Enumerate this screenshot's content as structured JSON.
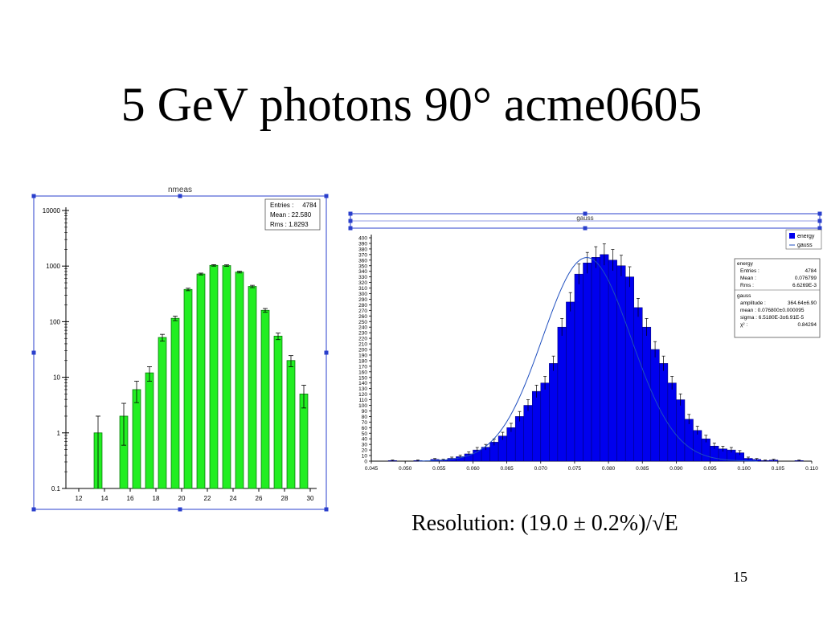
{
  "slide": {
    "title": "5 GeV photons 90° acme0605",
    "resolution_text": "Resolution: (19.0 ± 0.2%)/√E",
    "page_number": "15"
  },
  "colors": {
    "left_bars": "#22ee22",
    "right_bars": "#0000ee",
    "fit_curve": "#1f4fbf",
    "frame": "#2a3fcc"
  },
  "chart_data": [
    {
      "type": "bar",
      "title": "nmeas",
      "log_y": true,
      "xlim": [
        11,
        30.5
      ],
      "ylim": [
        0.1,
        10000
      ],
      "x_ticks": [
        "12",
        "14",
        "16",
        "18",
        "20",
        "22",
        "24",
        "26",
        "28",
        "30"
      ],
      "y_ticks": [
        "0.1",
        "1",
        "10",
        "100",
        "1000",
        "10000"
      ],
      "bins": [
        {
          "x": 13.5,
          "value": 1,
          "err": 1
        },
        {
          "x": 15.5,
          "value": 2,
          "err": 1.4
        },
        {
          "x": 16.5,
          "value": 6,
          "err": 2.5
        },
        {
          "x": 17.5,
          "value": 12,
          "err": 3.5
        },
        {
          "x": 18.5,
          "value": 52,
          "err": 7.2
        },
        {
          "x": 19.5,
          "value": 115,
          "err": 10.7
        },
        {
          "x": 20.5,
          "value": 380,
          "err": 19.5
        },
        {
          "x": 21.5,
          "value": 720,
          "err": 26.8
        },
        {
          "x": 22.5,
          "value": 1030,
          "err": 32
        },
        {
          "x": 23.5,
          "value": 1020,
          "err": 32
        },
        {
          "x": 24.5,
          "value": 780,
          "err": 28
        },
        {
          "x": 25.5,
          "value": 430,
          "err": 20.7
        },
        {
          "x": 26.5,
          "value": 160,
          "err": 12.6
        },
        {
          "x": 27.5,
          "value": 55,
          "err": 7.4
        },
        {
          "x": 28.5,
          "value": 20,
          "err": 4.5
        },
        {
          "x": 29.5,
          "value": 5,
          "err": 2.2
        }
      ],
      "stats": {
        "rows": [
          {
            "label": "Entries :",
            "value": "4784"
          },
          {
            "label": "Mean : 22.580",
            "value": ""
          },
          {
            "label": "Rms :  1.8293",
            "value": ""
          }
        ]
      }
    },
    {
      "type": "bar",
      "title": "gauss",
      "xlim": [
        0.045,
        0.11
      ],
      "ylim": [
        0,
        400
      ],
      "bin_width": 0.00125,
      "x_ticks": [
        "0.045",
        "0.050",
        "0.055",
        "0.060",
        "0.065",
        "0.070",
        "0.075",
        "0.080",
        "0.085",
        "0.090",
        "0.095",
        "0.100",
        "0.105",
        "0.110"
      ],
      "y_ticks": [
        "0",
        "10",
        "20",
        "30",
        "40",
        "50",
        "60",
        "70",
        "80",
        "90",
        "100",
        "110",
        "120",
        "130",
        "140",
        "150",
        "160",
        "170",
        "180",
        "190",
        "200",
        "210",
        "220",
        "230",
        "240",
        "250",
        "260",
        "270",
        "280",
        "290",
        "300",
        "310",
        "320",
        "330",
        "340",
        "350",
        "360",
        "370",
        "380",
        "390",
        "400"
      ],
      "bins": [
        {
          "x": 0.04813,
          "value": 1
        },
        {
          "x": 0.04938,
          "value": 0
        },
        {
          "x": 0.05063,
          "value": 0
        },
        {
          "x": 0.05188,
          "value": 1
        },
        {
          "x": 0.05313,
          "value": 0
        },
        {
          "x": 0.05438,
          "value": 3
        },
        {
          "x": 0.05563,
          "value": 2
        },
        {
          "x": 0.05688,
          "value": 5
        },
        {
          "x": 0.05813,
          "value": 8
        },
        {
          "x": 0.05938,
          "value": 13
        },
        {
          "x": 0.06063,
          "value": 20
        },
        {
          "x": 0.06188,
          "value": 25
        },
        {
          "x": 0.06313,
          "value": 34
        },
        {
          "x": 0.06438,
          "value": 45
        },
        {
          "x": 0.06563,
          "value": 60
        },
        {
          "x": 0.06688,
          "value": 80
        },
        {
          "x": 0.06813,
          "value": 100
        },
        {
          "x": 0.06938,
          "value": 125
        },
        {
          "x": 0.07063,
          "value": 140
        },
        {
          "x": 0.07188,
          "value": 175
        },
        {
          "x": 0.07313,
          "value": 240
        },
        {
          "x": 0.07438,
          "value": 285
        },
        {
          "x": 0.07563,
          "value": 335
        },
        {
          "x": 0.07688,
          "value": 355
        },
        {
          "x": 0.07813,
          "value": 365
        },
        {
          "x": 0.07938,
          "value": 370
        },
        {
          "x": 0.08063,
          "value": 360
        },
        {
          "x": 0.08188,
          "value": 350
        },
        {
          "x": 0.08313,
          "value": 330
        },
        {
          "x": 0.08438,
          "value": 275
        },
        {
          "x": 0.08563,
          "value": 240
        },
        {
          "x": 0.08688,
          "value": 200
        },
        {
          "x": 0.08813,
          "value": 175
        },
        {
          "x": 0.08938,
          "value": 140
        },
        {
          "x": 0.09063,
          "value": 110
        },
        {
          "x": 0.09188,
          "value": 75
        },
        {
          "x": 0.09313,
          "value": 55
        },
        {
          "x": 0.09438,
          "value": 40
        },
        {
          "x": 0.09563,
          "value": 27
        },
        {
          "x": 0.09688,
          "value": 22
        },
        {
          "x": 0.09813,
          "value": 20
        },
        {
          "x": 0.09938,
          "value": 15
        },
        {
          "x": 0.10063,
          "value": 5
        },
        {
          "x": 0.10188,
          "value": 3
        },
        {
          "x": 0.10313,
          "value": 1
        },
        {
          "x": 0.10438,
          "value": 2
        },
        {
          "x": 0.10563,
          "value": 0
        },
        {
          "x": 0.10688,
          "value": 0
        },
        {
          "x": 0.10813,
          "value": 1
        }
      ],
      "fit": {
        "amplitude": 364.64,
        "mean": 0.0768,
        "sigma": 0.00652
      },
      "legend": [
        {
          "label": "energy",
          "kind": "box"
        },
        {
          "label": "gauss",
          "kind": "line"
        }
      ],
      "stats": {
        "energy": {
          "title": "energy",
          "rows": [
            {
              "label": "Entries :",
              "value": "4784"
            },
            {
              "label": "Mean :",
              "value": "0.076799"
            },
            {
              "label": "Rms :",
              "value": "6.6269E-3"
            }
          ]
        },
        "gauss": {
          "title": "gauss",
          "rows": [
            {
              "label": "amplitude :",
              "value": "364.64±6.90"
            },
            {
              "label": "mean : 0.076800±0.000095",
              "value": ""
            },
            {
              "label": "sigma :  6.5180E-3±6.91E-5",
              "value": ""
            },
            {
              "label": "χ² :",
              "value": "0.84294"
            }
          ]
        }
      }
    }
  ]
}
